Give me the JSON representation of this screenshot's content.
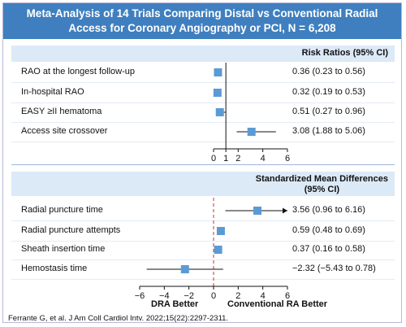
{
  "title": {
    "line1": "Meta-Analysis of 14 Trials Comparing Distal vs Conventional Radial",
    "line2": "Access for Coronary Angiography or PCI, N = 6,208"
  },
  "panel1": {
    "header": "Risk Ratios (95% CI)"
  },
  "panel2": {
    "header_line1": "Standardized Mean Differences",
    "header_line2": "(95% CI)"
  },
  "footer": {
    "left": "DRA Better",
    "right": "Conventional RA Better",
    "citation": "Ferrante G, et al. J Am Coll Cardiol Intv. 2022;15(22):2297-2311."
  },
  "colors": {
    "title_bg": "#3f7fbf",
    "header_bg": "#dce9f7",
    "marker": "#5b9bd5",
    "ref_line_dashed": "#c0392b"
  },
  "chart_data": [
    {
      "type": "forest",
      "measure": "Risk Ratios (95% CI)",
      "xlim": [
        0,
        6
      ],
      "ticks": [
        0,
        1,
        2,
        4,
        6
      ],
      "reference": 1,
      "rows": [
        {
          "label": "RAO at the longest follow-up",
          "estimate": 0.36,
          "lower": 0.23,
          "upper": 0.56,
          "ci_text": "0.36 (0.23 to 0.56)"
        },
        {
          "label": "In-hospital RAO",
          "estimate": 0.32,
          "lower": 0.19,
          "upper": 0.53,
          "ci_text": "0.32 (0.19 to 0.53)"
        },
        {
          "label": "EASY ≥II hematoma",
          "estimate": 0.51,
          "lower": 0.27,
          "upper": 0.96,
          "ci_text": "0.51 (0.27 to 0.96)"
        },
        {
          "label": "Access site crossover",
          "estimate": 3.08,
          "lower": 1.88,
          "upper": 5.06,
          "ci_text": "3.08 (1.88 to 5.06)"
        }
      ]
    },
    {
      "type": "forest",
      "measure": "Standardized Mean Differences (95% CI)",
      "xlim": [
        -6,
        6
      ],
      "ticks": [
        -6,
        -4,
        -2,
        0,
        2,
        4,
        6
      ],
      "reference": 0,
      "rows": [
        {
          "label": "Radial puncture time",
          "estimate": 3.56,
          "lower": 0.96,
          "upper": 6.16,
          "ci_text": "3.56 (0.96 to 6.16)",
          "arrow_right": true
        },
        {
          "label": "Radial puncture attempts",
          "estimate": 0.59,
          "lower": 0.48,
          "upper": 0.69,
          "ci_text": "0.59 (0.48 to 0.69)"
        },
        {
          "label": "Sheath insertion time",
          "estimate": 0.37,
          "lower": 0.16,
          "upper": 0.58,
          "ci_text": "0.37 (0.16 to 0.58)"
        },
        {
          "label": "Hemostasis time",
          "estimate": -2.32,
          "lower": -5.43,
          "upper": 0.78,
          "ci_text": "−2.32 (−5.43 to 0.78)"
        }
      ]
    }
  ]
}
